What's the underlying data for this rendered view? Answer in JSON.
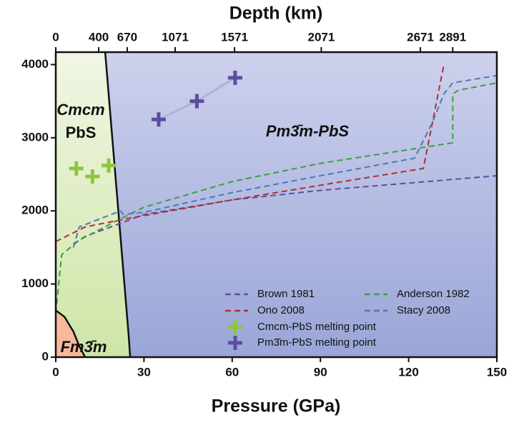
{
  "chart_data": {
    "type": "line",
    "xlabel": "Pressure (GPa)",
    "x2label": "Depth (km)",
    "xlim": [
      0,
      150
    ],
    "xticks": [
      0,
      30,
      60,
      90,
      120,
      150
    ],
    "ylim": [
      0,
      4170
    ],
    "yticks": [
      0,
      1000,
      2000,
      3000,
      4000
    ],
    "x2ticks": [
      0,
      {
        "value": 14.6,
        "label": "400"
      },
      {
        "value": 24.3,
        "label": "670"
      },
      {
        "value": 40.6,
        "label": "1071"
      },
      {
        "value": 60.8,
        "label": "1571"
      },
      {
        "value": 90.3,
        "label": "2071"
      },
      {
        "value": 124,
        "label": "2671"
      },
      {
        "value": 135,
        "label": "2891"
      }
    ],
    "annotations": [
      "Cmcm",
      "PbS",
      "Pm3̄m-PbS",
      "Fm3̄m"
    ],
    "phase_boundaries": [
      {
        "color": "#111111",
        "x": [
          16.8,
          24.8,
          25.3
        ],
        "y": [
          4170,
          293,
          0
        ]
      },
      {
        "color": "#111111",
        "x": [
          0,
          3,
          6,
          8,
          10
        ],
        "y": [
          640,
          550,
          350,
          150,
          0
        ]
      }
    ],
    "series": [
      {
        "name": "Brown 1981",
        "color": "#5b4ea0",
        "style": "dashed",
        "x": [
          6,
          10,
          20,
          30,
          60,
          90,
          120,
          150
        ],
        "values": [
          1550,
          1650,
          1800,
          1950,
          2150,
          2280,
          2380,
          2480
        ]
      },
      {
        "name": "Anderson 1982",
        "color": "#3aa040",
        "style": "dashed",
        "x": [
          0,
          2,
          8,
          20,
          30,
          60,
          90,
          135,
          135,
          137,
          150
        ],
        "values": [
          600,
          1400,
          1600,
          1850,
          2050,
          2400,
          2650,
          2930,
          3600,
          3650,
          3750
        ]
      },
      {
        "name": "Ono 2008",
        "color": "#b03030",
        "style": "dashed",
        "x": [
          0,
          10,
          25,
          60,
          90,
          125,
          132
        ],
        "values": [
          1580,
          1780,
          1900,
          2150,
          2350,
          2580,
          4000
        ]
      },
      {
        "name": "Stacy 2008",
        "color": "#4a7ab8",
        "style": "dashed",
        "x": [
          6,
          8,
          22,
          23,
          30,
          60,
          90,
          122,
          128,
          132,
          135,
          150
        ],
        "values": [
          1500,
          1780,
          2000,
          1950,
          1980,
          2250,
          2480,
          2720,
          3200,
          3600,
          3750,
          3850
        ]
      },
      {
        "name": "Cmcm-PbS melting point",
        "color": "#8cc63f",
        "style": "markers",
        "x": [
          7,
          12.5,
          18
        ],
        "values": [
          2580,
          2470,
          2620
        ]
      },
      {
        "name": "Pm3̄m-PbS melting point",
        "color": "#5b4ea0",
        "style": "markers",
        "connector_color": "#b4aedb",
        "x": [
          35,
          48,
          61
        ],
        "values": [
          3250,
          3500,
          3820
        ]
      }
    ]
  }
}
